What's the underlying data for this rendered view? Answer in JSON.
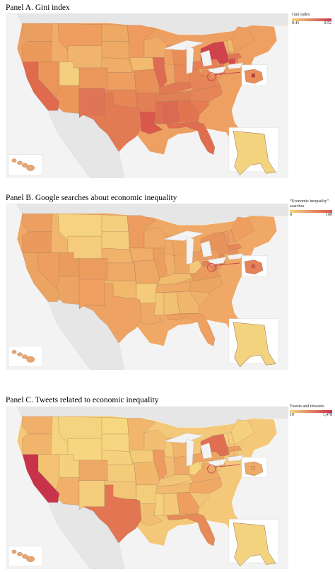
{
  "panels": [
    {
      "title": "Panel A. Gini index",
      "legend": {
        "title": "Gini index",
        "min": "0.41",
        "max": "0.52"
      },
      "colors": {
        "default": "#eda062",
        "WA": "#ea9f60",
        "OR": "#eb9a5c",
        "CA": "#e06a4e",
        "NV": "#eb955b",
        "ID": "#f0ac68",
        "UT": "#f4d07e",
        "AZ": "#ec9659",
        "MT": "#ef9e5f",
        "WY": "#f1b46c",
        "CO": "#ec975c",
        "NM": "#e07556",
        "ND": "#eeaa65",
        "SD": "#efaa66",
        "NE": "#efad68",
        "KS": "#ee9f60",
        "OK": "#e78756",
        "TX": "#e27b54",
        "MN": "#ef9a5e",
        "IA": "#f3bb70",
        "MO": "#e98f58",
        "AR": "#e27f55",
        "LA": "#d9584b",
        "WI": "#f0ab67",
        "IL": "#de6c52",
        "MI": "#e88e57",
        "IN": "#efa362",
        "OH": "#e8895a",
        "KY": "#e27955",
        "TN": "#e17f55",
        "MS": "#de7052",
        "AL": "#dc6a50",
        "GA": "#e2744f",
        "FL": "#e06d50",
        "SC": "#e57c53",
        "NC": "#e68557",
        "VA": "#e6845a",
        "WV": "#e58856",
        "PA": "#e67f55",
        "NY": "#d1434b",
        "VT": "#f1ae6b",
        "NH": "#f2b86d",
        "ME": "#ee9e61",
        "MA": "#e17655",
        "CT": "#d84a4d",
        "RI": "#e57f57",
        "NJ": "#e27a56",
        "DE": "#ef9e61",
        "MD": "#ea8d59",
        "DC": "#c93a49",
        "AK": "#f4d37f",
        "HI": "#eda56a"
      }
    },
    {
      "title": "Panel B. Google searches about economic inequality",
      "legend": {
        "title": "“Economic inequality” searches",
        "min": "0",
        "max": "100"
      },
      "colors": {
        "default": "#efa866",
        "WA": "#ec9f60",
        "OR": "#ea9a5d",
        "CA": "#eba461",
        "NV": "#ee9f60",
        "ID": "#f1b66c",
        "UT": "#ea9c5e",
        "AZ": "#eda362",
        "MT": "#f5d37f",
        "WY": "#f4cc7b",
        "CO": "#ec9c5f",
        "NM": "#ef9f60",
        "ND": "#f4cf7d",
        "SD": "#f4ce7c",
        "NE": "#f1b26a",
        "KS": "#eeaa66",
        "OK": "#f2b96d",
        "TX": "#eea263",
        "MN": "#ec9c5f",
        "IA": "#efad68",
        "MO": "#eea865",
        "AR": "#f4cb7a",
        "LA": "#efa865",
        "WI": "#efa866",
        "IL": "#ec9e5f",
        "MI": "#eda562",
        "IN": "#f0b069",
        "OH": "#eea665",
        "KY": "#f2bc70",
        "TN": "#efaa67",
        "MS": "#f3c576",
        "AL": "#f2c072",
        "GA": "#f0b66c",
        "FL": "#ef9f60",
        "SC": "#f0b06a",
        "NC": "#eda562",
        "VA": "#e99a5d",
        "WV": "#f4c87a",
        "PA": "#ec9e61",
        "NY": "#e8925c",
        "VT": "#ec9a60",
        "NH": "#ee9d62",
        "ME": "#ee9f60",
        "MA": "#e6855a",
        "CT": "#e8925c",
        "RI": "#ea965e",
        "NJ": "#e88d58",
        "DE": "#ec9a5e",
        "MD": "#e5825a",
        "DC": "#d9584b",
        "AK": "#f4d37f",
        "HI": "#eda56a"
      }
    },
    {
      "title": "Panel C. Tweets related to economic inequality",
      "legend": {
        "title": "Tweets and retweets",
        "min": "10",
        "max": "1,478"
      },
      "colors": {
        "default": "#f3c879",
        "WA": "#f0b06a",
        "OR": "#f1b46c",
        "CA": "#c8324a",
        "NV": "#f3c273",
        "ID": "#f5d37f",
        "UT": "#f5d07e",
        "AZ": "#f0b069",
        "MT": "#f5d480",
        "WY": "#f6d780",
        "CO": "#eea866",
        "NM": "#f4cc7b",
        "ND": "#f6d880",
        "SD": "#f6d680",
        "NE": "#f5d17d",
        "KS": "#f4cb79",
        "OK": "#f3c576",
        "TX": "#e27552",
        "MN": "#f1b66c",
        "IA": "#f4cb79",
        "MO": "#f1b86c",
        "AR": "#f4cd7b",
        "LA": "#f2be71",
        "WI": "#f2bf72",
        "IL": "#ec9a5f",
        "MI": "#f1b46b",
        "IN": "#f2bc70",
        "OH": "#efaa67",
        "KY": "#f3c576",
        "TN": "#f2ba6f",
        "MS": "#f5d07d",
        "AL": "#f4c978",
        "GA": "#ee9f60",
        "FL": "#e68a57",
        "SC": "#f3c475",
        "NC": "#efa965",
        "VA": "#efaa66",
        "WV": "#f6d780",
        "PA": "#eda462",
        "NY": "#e06f52",
        "VT": "#f5d17e",
        "NH": "#f5cc7c",
        "ME": "#f5d17e",
        "MA": "#ec9d60",
        "CT": "#f2bd71",
        "RI": "#f4c878",
        "NJ": "#eda462",
        "DE": "#f4ca79",
        "MD": "#efaa66",
        "DC": "#eea463",
        "AK": "#f4d37f",
        "HI": "#eda56a"
      }
    }
  ]
}
